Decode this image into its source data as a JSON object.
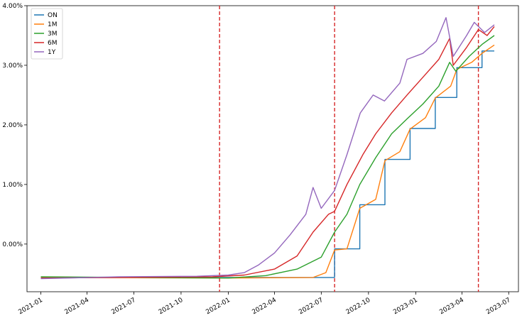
{
  "chart_data": {
    "type": "line",
    "title": "",
    "xlabel": "",
    "ylabel": "",
    "x_tick_labels": [
      "2021-01",
      "2021-04",
      "2021-07",
      "2021-10",
      "2022-01",
      "2022-04",
      "2022-07",
      "2022-10",
      "2023-01",
      "2023-04",
      "2023-07"
    ],
    "y_tick_labels": [
      "0.00%",
      "1.00%",
      "2.00%",
      "3.00%",
      "4.00%"
    ],
    "ylim": [
      -0.8,
      4.0
    ],
    "xlim": [
      "2020-12-05",
      "2023-07-20"
    ],
    "grid": false,
    "legend_position": "upper-left",
    "vertical_lines": [
      {
        "x": "2021-12-15",
        "color": "#d62728",
        "style": "dashed"
      },
      {
        "x": "2022-07-27",
        "color": "#d62728",
        "style": "dashed"
      },
      {
        "x": "2023-05-03",
        "color": "#d62728",
        "style": "dashed"
      }
    ],
    "series": [
      {
        "name": "ON",
        "color": "#1f77b4",
        "step": true,
        "points": [
          [
            "2021-01-01",
            -0.56
          ],
          [
            "2022-07-26",
            -0.56
          ],
          [
            "2022-07-27",
            -0.08
          ],
          [
            "2022-09-13",
            -0.08
          ],
          [
            "2022-09-14",
            0.66
          ],
          [
            "2022-11-01",
            0.66
          ],
          [
            "2022-11-02",
            1.42
          ],
          [
            "2022-12-20",
            1.42
          ],
          [
            "2022-12-21",
            1.94
          ],
          [
            "2023-02-07",
            1.94
          ],
          [
            "2023-02-08",
            2.46
          ],
          [
            "2023-03-21",
            2.46
          ],
          [
            "2023-03-22",
            2.96
          ],
          [
            "2023-05-09",
            2.96
          ],
          [
            "2023-05-10",
            3.24
          ],
          [
            "2023-06-03",
            3.24
          ]
        ]
      },
      {
        "name": "1M",
        "color": "#ff7f0e",
        "step": false,
        "points": [
          [
            "2021-01-01",
            -0.56
          ],
          [
            "2022-01-01",
            -0.57
          ],
          [
            "2022-06-15",
            -0.56
          ],
          [
            "2022-07-10",
            -0.48
          ],
          [
            "2022-07-27",
            -0.1
          ],
          [
            "2022-08-20",
            -0.08
          ],
          [
            "2022-09-14",
            0.6
          ],
          [
            "2022-10-15",
            0.75
          ],
          [
            "2022-11-02",
            1.4
          ],
          [
            "2022-12-01",
            1.55
          ],
          [
            "2022-12-21",
            1.93
          ],
          [
            "2023-01-20",
            2.12
          ],
          [
            "2023-02-08",
            2.45
          ],
          [
            "2023-03-10",
            2.65
          ],
          [
            "2023-03-22",
            2.93
          ],
          [
            "2023-04-20",
            3.05
          ],
          [
            "2023-05-10",
            3.2
          ],
          [
            "2023-06-03",
            3.34
          ]
        ]
      },
      {
        "name": "3M",
        "color": "#2ca02c",
        "step": false,
        "points": [
          [
            "2021-01-01",
            -0.55
          ],
          [
            "2022-01-01",
            -0.57
          ],
          [
            "2022-03-15",
            -0.53
          ],
          [
            "2022-05-15",
            -0.42
          ],
          [
            "2022-07-01",
            -0.22
          ],
          [
            "2022-07-27",
            0.2
          ],
          [
            "2022-08-20",
            0.5
          ],
          [
            "2022-09-14",
            1.0
          ],
          [
            "2022-10-15",
            1.45
          ],
          [
            "2022-11-15",
            1.85
          ],
          [
            "2022-12-15",
            2.1
          ],
          [
            "2023-01-15",
            2.35
          ],
          [
            "2023-02-15",
            2.65
          ],
          [
            "2023-03-08",
            3.05
          ],
          [
            "2023-03-20",
            2.9
          ],
          [
            "2023-04-15",
            3.15
          ],
          [
            "2023-05-10",
            3.35
          ],
          [
            "2023-06-03",
            3.5
          ]
        ]
      },
      {
        "name": "6M",
        "color": "#d62728",
        "step": false,
        "points": [
          [
            "2021-01-01",
            -0.57
          ],
          [
            "2021-12-01",
            -0.55
          ],
          [
            "2022-02-01",
            -0.52
          ],
          [
            "2022-04-01",
            -0.42
          ],
          [
            "2022-05-15",
            -0.2
          ],
          [
            "2022-06-15",
            0.2
          ],
          [
            "2022-07-15",
            0.5
          ],
          [
            "2022-07-27",
            0.55
          ],
          [
            "2022-08-20",
            1.0
          ],
          [
            "2022-09-20",
            1.5
          ],
          [
            "2022-10-15",
            1.85
          ],
          [
            "2022-11-15",
            2.2
          ],
          [
            "2022-12-15",
            2.5
          ],
          [
            "2023-01-15",
            2.8
          ],
          [
            "2023-02-15",
            3.1
          ],
          [
            "2023-03-08",
            3.45
          ],
          [
            "2023-03-15",
            3.0
          ],
          [
            "2023-04-10",
            3.3
          ],
          [
            "2023-05-03",
            3.6
          ],
          [
            "2023-05-20",
            3.5
          ],
          [
            "2023-06-03",
            3.65
          ]
        ]
      },
      {
        "name": "1Y",
        "color": "#9467bd",
        "step": false,
        "points": [
          [
            "2021-01-01",
            -0.58
          ],
          [
            "2021-06-01",
            -0.55
          ],
          [
            "2021-11-01",
            -0.54
          ],
          [
            "2022-01-01",
            -0.52
          ],
          [
            "2022-02-01",
            -0.48
          ],
          [
            "2022-03-01",
            -0.35
          ],
          [
            "2022-04-01",
            -0.15
          ],
          [
            "2022-05-01",
            0.15
          ],
          [
            "2022-06-01",
            0.5
          ],
          [
            "2022-06-15",
            0.95
          ],
          [
            "2022-07-01",
            0.6
          ],
          [
            "2022-07-27",
            0.9
          ],
          [
            "2022-08-20",
            1.5
          ],
          [
            "2022-09-15",
            2.2
          ],
          [
            "2022-10-10",
            2.5
          ],
          [
            "2022-11-01",
            2.4
          ],
          [
            "2022-12-01",
            2.7
          ],
          [
            "2022-12-15",
            3.1
          ],
          [
            "2023-01-15",
            3.2
          ],
          [
            "2023-02-10",
            3.4
          ],
          [
            "2023-03-01",
            3.8
          ],
          [
            "2023-03-15",
            3.15
          ],
          [
            "2023-04-10",
            3.5
          ],
          [
            "2023-04-25",
            3.72
          ],
          [
            "2023-05-15",
            3.55
          ],
          [
            "2023-06-03",
            3.68
          ]
        ]
      }
    ]
  }
}
